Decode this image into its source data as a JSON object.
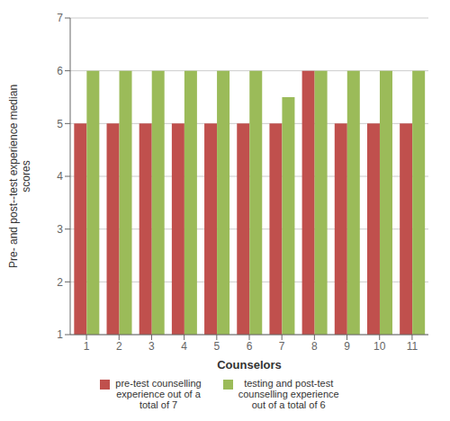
{
  "chart_data": {
    "type": "bar",
    "categories": [
      "1",
      "2",
      "3",
      "4",
      "5",
      "6",
      "7",
      "8",
      "9",
      "10",
      "11"
    ],
    "series": [
      {
        "name": "pre-test counselling\nexperience out of a\ntotal of 7",
        "color": "#c0504d",
        "values": [
          5,
          5,
          5,
          5,
          5,
          5,
          5,
          6,
          5,
          5,
          5
        ]
      },
      {
        "name": "testing and post-test\ncounselling experience\nout of a total of 6",
        "color": "#9bbb59",
        "values": [
          6,
          6,
          6,
          6,
          6,
          6,
          5.5,
          6,
          6,
          6,
          6
        ]
      }
    ],
    "xlabel": "Counselors",
    "ylabel": "Pre- and post--test experience median\nscores",
    "ylim": [
      1,
      7
    ],
    "yticks": [
      1,
      2,
      3,
      4,
      5,
      6,
      7
    ],
    "grid": true,
    "legend": "bottom"
  }
}
